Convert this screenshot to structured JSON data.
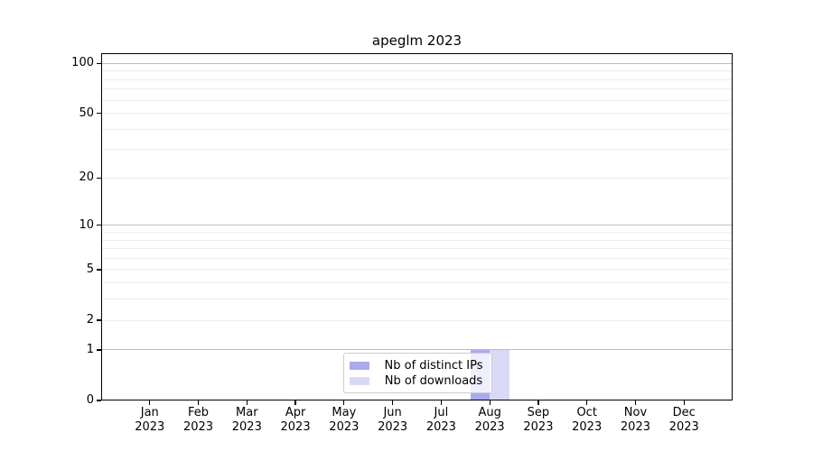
{
  "chart_data": {
    "type": "bar",
    "title": "apeglm 2023",
    "x_categories": [
      {
        "month": "Jan",
        "year": "2023"
      },
      {
        "month": "Feb",
        "year": "2023"
      },
      {
        "month": "Mar",
        "year": "2023"
      },
      {
        "month": "Apr",
        "year": "2023"
      },
      {
        "month": "May",
        "year": "2023"
      },
      {
        "month": "Jun",
        "year": "2023"
      },
      {
        "month": "Jul",
        "year": "2023"
      },
      {
        "month": "Aug",
        "year": "2023"
      },
      {
        "month": "Sep",
        "year": "2023"
      },
      {
        "month": "Oct",
        "year": "2023"
      },
      {
        "month": "Nov",
        "year": "2023"
      },
      {
        "month": "Dec",
        "year": "2023"
      }
    ],
    "series": [
      {
        "name": "Nb of distinct IPs",
        "color": "#aaaaee",
        "values": [
          0,
          0,
          0,
          0,
          0,
          0,
          0,
          1,
          0,
          0,
          0,
          0
        ]
      },
      {
        "name": "Nb of downloads",
        "color": "#d9d9f7",
        "values": [
          0,
          0,
          0,
          0,
          0,
          0,
          0,
          1,
          0,
          0,
          0,
          0
        ]
      }
    ],
    "xlabel": "",
    "ylabel": "",
    "yscale": "log1p",
    "ylim": [
      0,
      115
    ],
    "yticks": [
      0,
      1,
      2,
      5,
      10,
      20,
      50,
      100
    ],
    "grid_major": [
      1,
      10,
      100
    ],
    "grid_minor": [
      2,
      3,
      4,
      5,
      6,
      7,
      8,
      9,
      20,
      30,
      40,
      50,
      60,
      70,
      80,
      90
    ],
    "grid": "on",
    "legend_position": "lower center",
    "colors": {
      "spine": "#000000",
      "grid_major": "#bdbdbd",
      "grid_minor": "#ededed",
      "background": "#ffffff"
    }
  }
}
